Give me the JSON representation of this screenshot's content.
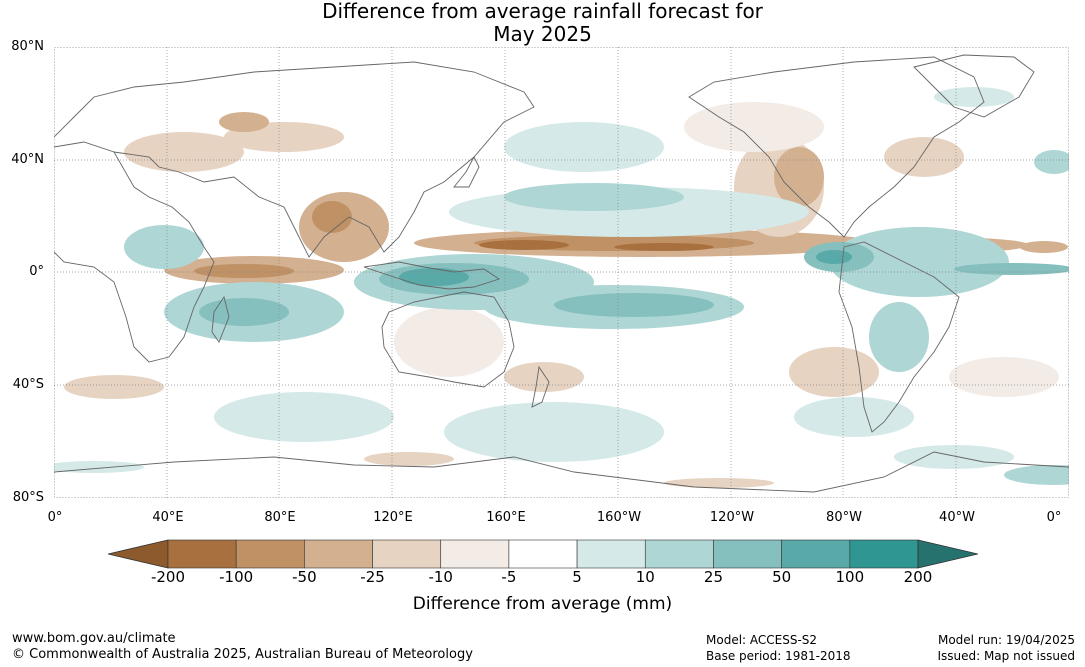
{
  "title": {
    "line1": "Difference from average rainfall forecast for",
    "line2": "May 2025"
  },
  "map": {
    "lat_labels": [
      "80°N",
      "40°N",
      "0°",
      "40°S",
      "80°S"
    ],
    "lon_labels": [
      "0°",
      "40°E",
      "80°E",
      "120°E",
      "160°E",
      "160°W",
      "120°W",
      "80°W",
      "40°W",
      "0°"
    ]
  },
  "colorbar": {
    "title": "Difference from average (mm)",
    "tick_labels": [
      "-200",
      "-100",
      "-50",
      "-25",
      "-10",
      "-5",
      "5",
      "10",
      "25",
      "50",
      "100",
      "200"
    ],
    "colors": [
      "#8c5a2c",
      "#a8703e",
      "#bf9165",
      "#d3b08f",
      "#e6d3c2",
      "#f2ebe6",
      "#ffffff",
      "#d4e9e8",
      "#aed6d5",
      "#85c0bf",
      "#58a9a8",
      "#2f9692",
      "#25726e"
    ]
  },
  "footer": {
    "url": "www.bom.gov.au/climate",
    "copyright": "© Commonwealth of Australia 2025, Australian Bureau of Meteorology",
    "model": "Model: ACCESS-S2",
    "base_period": "Base period: 1981-2018",
    "model_run": "Model run: 19/04/2025",
    "issued": "Issued: Map not issued"
  }
}
